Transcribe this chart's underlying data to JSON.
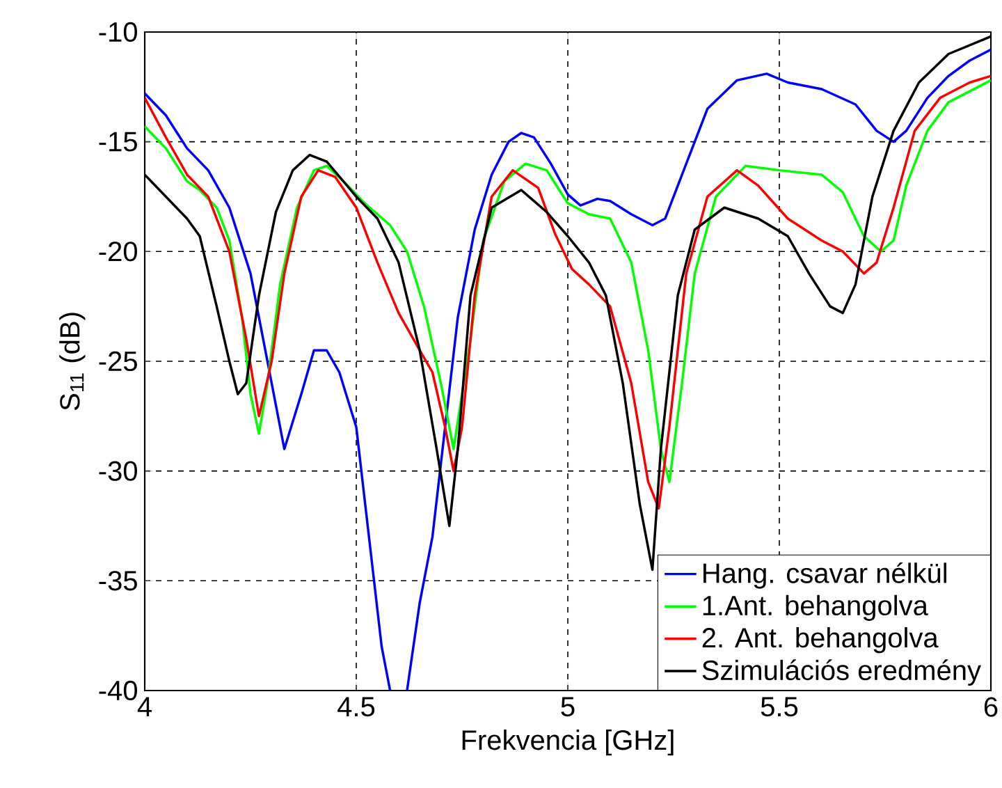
{
  "chart_data": {
    "type": "line",
    "xlabel": "Frekvencia [GHz]",
    "ylabel": "S$_{11}$ (dB)",
    "xlim": [
      4,
      6
    ],
    "ylim": [
      -40,
      -10
    ],
    "xticks": [
      4,
      4.5,
      5,
      5.5,
      6
    ],
    "yticks": [
      -40,
      -35,
      -30,
      -25,
      -20,
      -15,
      -10
    ],
    "grid": true,
    "legend": "bottom right",
    "line_style": "solid",
    "marker": "none",
    "series": [
      {
        "name": "Hang. csavar nélkül",
        "color": "#0000ff",
        "x": [
          4.0,
          4.05,
          4.1,
          4.15,
          4.2,
          4.25,
          4.29,
          4.33,
          4.37,
          4.4,
          4.43,
          4.46,
          4.5,
          4.53,
          4.56,
          4.58,
          4.6,
          4.62,
          4.65,
          4.68,
          4.71,
          4.74,
          4.78,
          4.82,
          4.86,
          4.89,
          4.92,
          4.96,
          5.0,
          5.03,
          5.07,
          5.1,
          5.15,
          5.2,
          5.23,
          5.28,
          5.33,
          5.4,
          5.47,
          5.52,
          5.6,
          5.68,
          5.73,
          5.77,
          5.8,
          5.85,
          5.9,
          5.95,
          6.0
        ],
        "values": [
          -12.8,
          -13.8,
          -15.3,
          -16.3,
          -18,
          -21,
          -25,
          -29,
          -26.5,
          -24.5,
          -24.5,
          -25.5,
          -28,
          -33,
          -38,
          -40,
          null,
          -40,
          -36,
          -33,
          -28,
          -23,
          -19,
          -16.5,
          -15,
          -14.6,
          -14.8,
          -16,
          -17.4,
          -17.9,
          -17.6,
          -17.7,
          -18.3,
          -18.8,
          -18.5,
          -16,
          -13.5,
          -12.2,
          -11.9,
          -12.3,
          -12.6,
          -13.3,
          -14.5,
          -15,
          -14.5,
          -13,
          -12,
          -11.3,
          -10.8
        ]
      },
      {
        "name": "1.Ant. behangolva",
        "color": "#00ff00",
        "x": [
          4.0,
          4.05,
          4.1,
          4.13,
          4.17,
          4.2,
          4.23,
          4.25,
          4.27,
          4.29,
          4.32,
          4.36,
          4.4,
          4.43,
          4.47,
          4.52,
          4.58,
          4.62,
          4.66,
          4.7,
          4.73,
          4.77,
          4.8,
          4.85,
          4.9,
          4.95,
          5.0,
          5.05,
          5.1,
          5.15,
          5.19,
          5.22,
          5.24,
          5.27,
          5.3,
          5.35,
          5.42,
          5.5,
          5.6,
          5.65,
          5.7,
          5.74,
          5.77,
          5.8,
          5.85,
          5.9,
          6.0
        ],
        "values": [
          -14.3,
          -15.3,
          -16.8,
          -17.2,
          -18,
          -19.5,
          -23,
          -26.5,
          -28.3,
          -26,
          -21.5,
          -18,
          -16.3,
          -16.1,
          -16.8,
          -17.8,
          -18.8,
          -20,
          -22.5,
          -26,
          -29,
          -24,
          -19.5,
          -16.8,
          -16,
          -16.3,
          -17.8,
          -18.3,
          -18.5,
          -20.5,
          -24.5,
          -29,
          -30.5,
          -26,
          -21,
          -17.5,
          -16.1,
          -16.3,
          -16.5,
          -17.3,
          -19.3,
          -20,
          -19.5,
          -17,
          -14.5,
          -13.2,
          -12.2
        ]
      },
      {
        "name": "2. Ant. behangolva",
        "color": "#ff0000",
        "x": [
          4.0,
          4.05,
          4.1,
          4.15,
          4.2,
          4.24,
          4.27,
          4.3,
          4.33,
          4.37,
          4.41,
          4.45,
          4.5,
          4.55,
          4.6,
          4.65,
          4.68,
          4.71,
          4.73,
          4.75,
          4.78,
          4.82,
          4.87,
          4.93,
          4.97,
          5.01,
          5.05,
          5.1,
          5.15,
          5.19,
          5.215,
          5.24,
          5.28,
          5.33,
          5.4,
          5.45,
          5.52,
          5.6,
          5.65,
          5.7,
          5.73,
          5.77,
          5.82,
          5.88,
          5.95,
          6.0
        ],
        "values": [
          -13,
          -14.8,
          -16.5,
          -17.5,
          -20,
          -24,
          -27.5,
          -25,
          -21,
          -17.5,
          -16.3,
          -16.6,
          -18,
          -20.5,
          -22.8,
          -24.5,
          -25.5,
          -28,
          -30,
          -28,
          -22,
          -17.5,
          -16.3,
          -17.1,
          -19.2,
          -20.8,
          -21.5,
          -22.5,
          -26,
          -30.5,
          -31.7,
          -28,
          -21,
          -17.5,
          -16.3,
          -17,
          -18.5,
          -19.5,
          -20,
          -21,
          -20.5,
          -18,
          -14.5,
          -13,
          -12.3,
          -12
        ]
      },
      {
        "name": "Szimulációs eredmény",
        "color": "#000000",
        "x": [
          4.0,
          4.05,
          4.1,
          4.13,
          4.17,
          4.2,
          4.22,
          4.24,
          4.27,
          4.31,
          4.35,
          4.39,
          4.43,
          4.5,
          4.55,
          4.6,
          4.65,
          4.69,
          4.72,
          4.74,
          4.77,
          4.82,
          4.89,
          4.95,
          5.0,
          5.05,
          5.09,
          5.13,
          5.17,
          5.2,
          5.22,
          5.26,
          5.3,
          5.37,
          5.45,
          5.52,
          5.57,
          5.62,
          5.65,
          5.68,
          5.72,
          5.77,
          5.83,
          5.9,
          6.0
        ],
        "values": [
          -16.5,
          -17.5,
          -18.5,
          -19.3,
          -22.5,
          -25,
          -26.5,
          -26,
          -22,
          -18.2,
          -16.3,
          -15.6,
          -15.9,
          -17.5,
          -18.5,
          -20.5,
          -24.5,
          -29,
          -32.5,
          -29,
          -22,
          -18,
          -17.2,
          -18.2,
          -19.3,
          -20.5,
          -22,
          -26,
          -31.5,
          -34.5,
          -29,
          -22,
          -19,
          -18,
          -18.5,
          -19.3,
          -21,
          -22.5,
          -22.8,
          -21.5,
          -17.5,
          -14.5,
          -12.3,
          -11,
          -10.2
        ]
      }
    ]
  }
}
